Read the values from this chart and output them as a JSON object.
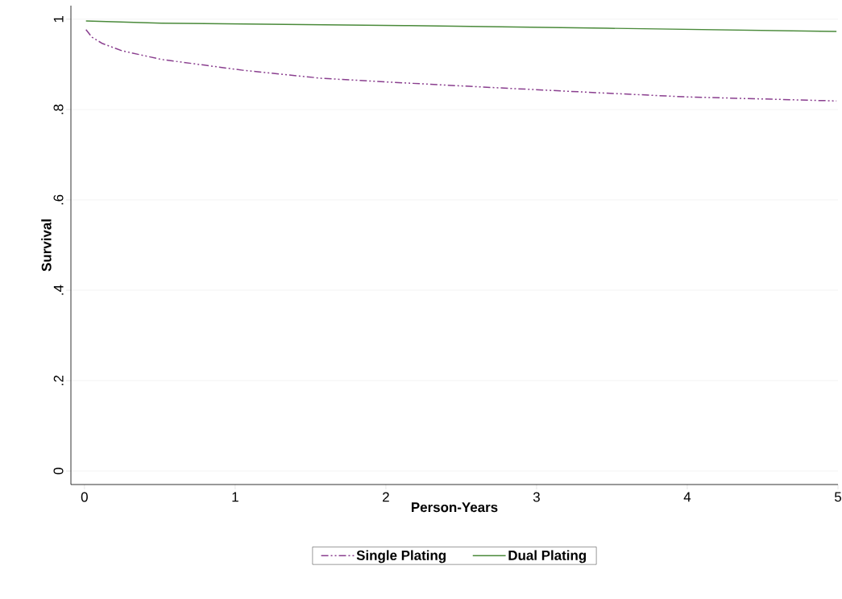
{
  "chart_data": {
    "type": "line",
    "xlabel": "Person-Years",
    "ylabel": "Survival",
    "xlim": [
      -0.09,
      5.0
    ],
    "ylim": [
      -0.03,
      1.03
    ],
    "xticks": [
      0,
      1,
      2,
      3,
      4,
      5
    ],
    "yticks": [
      {
        "value": 0,
        "label": "0"
      },
      {
        "value": 0.2,
        "label": ".2"
      },
      {
        "value": 0.4,
        "label": ".4"
      },
      {
        "value": 0.6,
        "label": ".6"
      },
      {
        "value": 0.8,
        "label": ".8"
      },
      {
        "value": 1,
        "label": "1"
      }
    ],
    "grid": "y",
    "legend": "bottom",
    "marker": "none",
    "series": [
      {
        "name": "Single Plating",
        "color": "#8a3f8f",
        "line_style": "dashdot",
        "x": [
          0.01,
          0.05,
          0.12,
          0.25,
          0.51,
          1.05,
          1.58,
          2.12,
          2.75,
          3.42,
          3.99,
          4.99
        ],
        "values": [
          0.977,
          0.96,
          0.946,
          0.93,
          0.911,
          0.887,
          0.869,
          0.859,
          0.848,
          0.837,
          0.828,
          0.819
        ]
      },
      {
        "name": "Dual Plating",
        "color": "#4a8a3a",
        "line_style": "solid",
        "x": [
          0.01,
          0.51,
          2.12,
          3.47,
          4.99
        ],
        "values": [
          0.996,
          0.991,
          0.986,
          0.98,
          0.973
        ]
      }
    ]
  }
}
